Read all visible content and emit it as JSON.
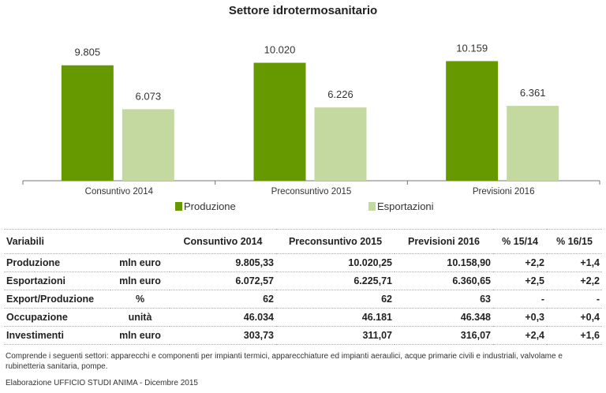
{
  "chart_data": {
    "type": "bar",
    "title": "Settore idrotermosanitario",
    "categories": [
      "Consuntivo 2014",
      "Preconsuntivo 2015",
      "Previsioni  2016"
    ],
    "series": [
      {
        "name": "Produzione",
        "values": [
          9805,
          10020,
          10159
        ],
        "labels": [
          "9.805",
          "10.020",
          "10.159"
        ],
        "color": "#669900"
      },
      {
        "name": "Esportazioni",
        "values": [
          6073,
          6226,
          6361
        ],
        "labels": [
          "6.073",
          "6.226",
          "6.361"
        ],
        "color": "#c4d9a0"
      }
    ],
    "legend": "bottom",
    "grid": false
  },
  "table": {
    "headers": [
      "Variabili",
      "",
      "Consuntivo 2014",
      "Preconsuntivo 2015",
      "Previsioni  2016",
      "% 15/14",
      "% 16/15"
    ],
    "rows": [
      [
        "Produzione",
        "mln euro",
        "9.805,33",
        "10.020,25",
        "10.158,90",
        "+2,2",
        "+1,4"
      ],
      [
        "Esportazioni",
        "mln euro",
        "6.072,57",
        "6.225,71",
        "6.360,65",
        "+2,5",
        "+2,2"
      ],
      [
        "Export/Produzione",
        "%",
        "62",
        "62",
        "63",
        "-",
        "-"
      ],
      [
        "Occupazione",
        "unità",
        "46.034",
        "46.181",
        "46.348",
        "+0,3",
        "+0,4"
      ],
      [
        "Investimenti",
        "mln euro",
        "303,73",
        "311,07",
        "316,07",
        "+2,4",
        "+1,6"
      ]
    ]
  },
  "note": "Comprende i seguenti settori: apparecchi e componenti per impianti termici, apparecchiature ed impianti aeraulici, acque primarie civili e industriali, valvolame e rubinetteria sanitaria, pompe.",
  "source": "Elaborazione UFFICIO STUDI ANIMA - Dicembre 2015"
}
